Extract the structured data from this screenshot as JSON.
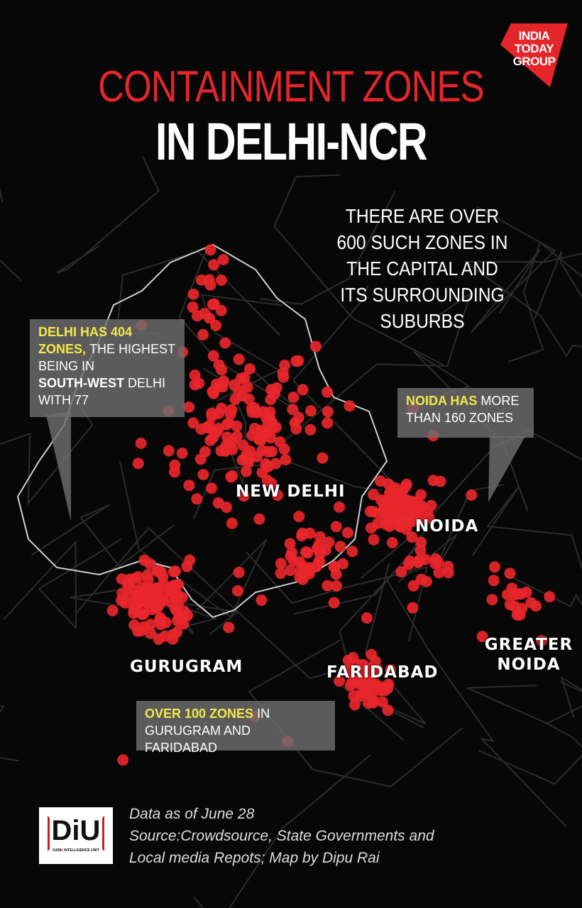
{
  "logo": {
    "lines": [
      "INDIA",
      "TODAY",
      "GROUP"
    ]
  },
  "title": {
    "line1": "CONTAINMENT ZONES",
    "line2": "IN DELHI-NCR"
  },
  "note": {
    "lines": [
      "THERE ARE OVER",
      "600 SUCH ZONES IN",
      "THE CAPITAL AND",
      "ITS SURROUNDING",
      "SUBURBS"
    ]
  },
  "delhi_callout": {
    "lines": [
      [
        "DELHI HAS 404"
      ],
      [
        "ZONES,",
        "THE HIGHEST"
      ],
      [
        "BEING IN"
      ],
      [
        "SOUTH-WEST",
        "DELHI"
      ],
      [
        "WITH 77"
      ]
    ]
  },
  "noida_callout": {
    "lines": [
      [
        "NOIDA HAS",
        "MORE"
      ],
      [
        "THAN 160 ZONES"
      ]
    ]
  },
  "ncr_callout": {
    "lines": [
      [
        "OVER 100 ZONES",
        "IN"
      ],
      [
        "GURUGRAM AND FARIDABAD"
      ]
    ]
  },
  "places": {
    "new_delhi": "NEW DELHI",
    "noida": "NOIDA",
    "gurugram": "GURUGRAM",
    "faridabad": "FARIDABAD",
    "greater_noida": [
      "GREATER",
      "NOIDA"
    ]
  },
  "footer": {
    "badge": "DiU",
    "badge_caption": "DARK INTELLIGENCE UNIT",
    "lines": [
      "Data as of June 28",
      "Source:Crowdsource, State Governments and",
      "Local media Repots; Map by Dipu Rai"
    ]
  }
}
